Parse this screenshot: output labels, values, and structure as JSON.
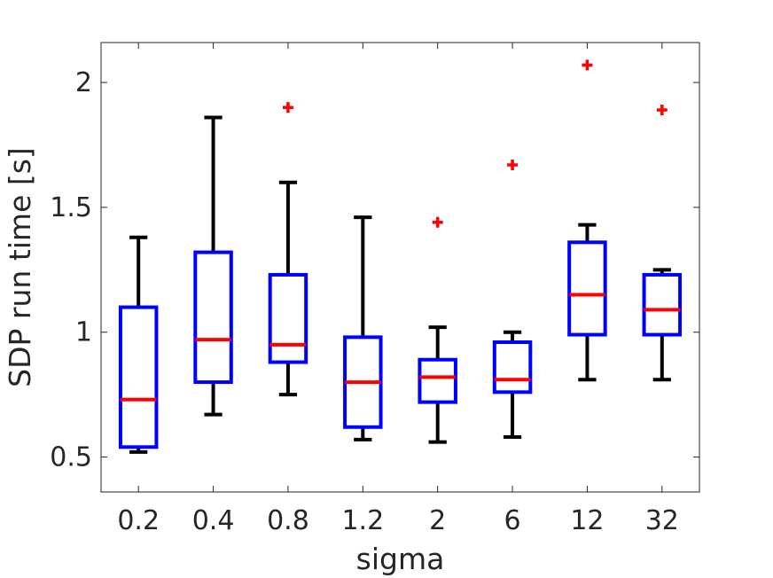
{
  "chart_data": {
    "type": "box",
    "title": "",
    "xlabel": "sigma",
    "ylabel": "SDP run time [s]",
    "categories": [
      "0.2",
      "0.4",
      "0.8",
      "1.2",
      "2",
      "6",
      "12",
      "32"
    ],
    "ylim": [
      0.36,
      2.16
    ],
    "yticks": [
      0.5,
      1,
      1.5,
      2
    ],
    "ytick_labels": [
      "0.5",
      "1",
      "1.5",
      "2"
    ],
    "grid": false,
    "colors": {
      "box": "#0000ff",
      "median": "#ff0000",
      "whisker": "#000000",
      "outlier": "#ff0000",
      "axis": "#262626"
    },
    "boxes": [
      {
        "category": "0.2",
        "whisker_low": 0.52,
        "q1": 0.54,
        "median": 0.73,
        "q3": 1.1,
        "whisker_high": 1.38,
        "outliers": []
      },
      {
        "category": "0.4",
        "whisker_low": 0.67,
        "q1": 0.8,
        "median": 0.97,
        "q3": 1.32,
        "whisker_high": 1.86,
        "outliers": []
      },
      {
        "category": "0.8",
        "whisker_low": 0.75,
        "q1": 0.88,
        "median": 0.95,
        "q3": 1.23,
        "whisker_high": 1.6,
        "outliers": [
          1.9
        ]
      },
      {
        "category": "1.2",
        "whisker_low": 0.57,
        "q1": 0.62,
        "median": 0.8,
        "q3": 0.98,
        "whisker_high": 1.46,
        "outliers": []
      },
      {
        "category": "2",
        "whisker_low": 0.56,
        "q1": 0.72,
        "median": 0.82,
        "q3": 0.89,
        "whisker_high": 1.02,
        "outliers": [
          1.44
        ]
      },
      {
        "category": "6",
        "whisker_low": 0.58,
        "q1": 0.76,
        "median": 0.81,
        "q3": 0.96,
        "whisker_high": 1.0,
        "outliers": [
          1.67
        ]
      },
      {
        "category": "12",
        "whisker_low": 0.81,
        "q1": 0.99,
        "median": 1.15,
        "q3": 1.36,
        "whisker_high": 1.43,
        "outliers": [
          2.07
        ]
      },
      {
        "category": "32",
        "whisker_low": 0.81,
        "q1": 0.99,
        "median": 1.09,
        "q3": 1.23,
        "whisker_high": 1.25,
        "outliers": [
          1.89
        ]
      }
    ]
  }
}
